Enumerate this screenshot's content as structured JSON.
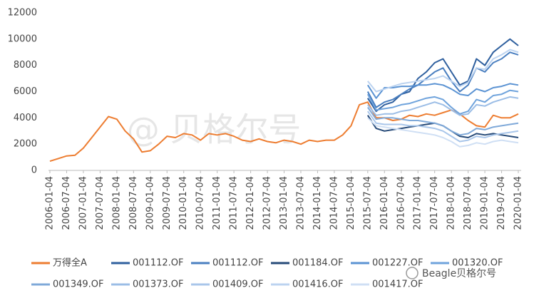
{
  "chart_data": {
    "type": "line",
    "watermark": "@ 贝格尔号",
    "logo_text": "Beagle贝格尔号",
    "x": [
      "2006-01-04",
      null,
      "2006-07-04",
      null,
      "2007-01-04",
      null,
      "2007-07-04",
      null,
      "2008-01-04",
      null,
      "2008-07-04",
      null,
      "2009-01-04",
      null,
      "2009-07-04",
      null,
      "2010-01-04",
      null,
      "2010-07-04",
      null,
      "2011-01-04",
      null,
      "2011-07-04",
      null,
      "2012-01-04",
      null,
      "2012-07-04",
      null,
      "2013-01-04",
      null,
      "2013-07-04",
      null,
      "2014-01-04",
      null,
      "2014-07-04",
      null,
      "2015-01-04",
      null,
      "2015-07-04",
      null,
      "2016-01-04",
      null,
      "2016-07-04",
      null,
      "2017-01-04",
      null,
      "2017-07-04",
      null,
      "2018-01-04",
      null,
      "2018-07-04",
      null,
      "2019-01-04",
      null,
      "2019-07-04",
      null,
      "2020-01-04"
    ],
    "ylim": [
      0,
      12000
    ],
    "yticks": [
      0,
      2000,
      4000,
      6000,
      8000,
      10000,
      12000
    ],
    "grid": false,
    "series": [
      {
        "name": "万得全A",
        "color": "#ed7d31",
        "values": [
          700,
          900,
          1100,
          1150,
          1700,
          2500,
          3300,
          4100,
          3900,
          3000,
          2400,
          1400,
          1500,
          2000,
          2600,
          2500,
          2800,
          2700,
          2300,
          2800,
          2700,
          2800,
          2600,
          2300,
          2200,
          2400,
          2200,
          2100,
          2300,
          2200,
          2000,
          2300,
          2200,
          2300,
          2300,
          2700,
          3400,
          5000,
          5200,
          4000,
          4000,
          3800,
          3900,
          4200,
          4100,
          4300,
          4200,
          4400,
          4600,
          4300,
          3800,
          3400,
          3300,
          4200,
          4000,
          4000,
          4300
        ]
      },
      {
        "name": "001112.OF",
        "color": "#2e5f9e",
        "values": [
          null,
          null,
          null,
          null,
          null,
          null,
          null,
          null,
          null,
          null,
          null,
          null,
          null,
          null,
          null,
          null,
          null,
          null,
          null,
          null,
          null,
          null,
          null,
          null,
          null,
          null,
          null,
          null,
          null,
          null,
          null,
          null,
          null,
          null,
          null,
          null,
          null,
          null,
          5500,
          4500,
          5000,
          5200,
          5800,
          6000,
          7000,
          7500,
          8200,
          8500,
          7500,
          6500,
          6800,
          8500,
          8000,
          9000,
          9500,
          10000,
          9500
        ]
      },
      {
        "name": "001112.OF",
        "color": "#4a7fc0",
        "values": [
          null,
          null,
          null,
          null,
          null,
          null,
          null,
          null,
          null,
          null,
          null,
          null,
          null,
          null,
          null,
          null,
          null,
          null,
          null,
          null,
          null,
          null,
          null,
          null,
          null,
          null,
          null,
          null,
          null,
          null,
          null,
          null,
          null,
          null,
          null,
          null,
          null,
          null,
          6000,
          4800,
          5200,
          5400,
          5800,
          6200,
          6500,
          7000,
          7500,
          7800,
          6800,
          6000,
          6500,
          7800,
          7500,
          8200,
          8500,
          9000,
          8800
        ]
      },
      {
        "name": "001184.OF",
        "color": "#264a78",
        "values": [
          null,
          null,
          null,
          null,
          null,
          null,
          null,
          null,
          null,
          null,
          null,
          null,
          null,
          null,
          null,
          null,
          null,
          null,
          null,
          null,
          null,
          null,
          null,
          null,
          null,
          null,
          null,
          null,
          null,
          null,
          null,
          null,
          null,
          null,
          null,
          null,
          null,
          null,
          4200,
          3200,
          3000,
          3100,
          3200,
          3300,
          3400,
          3500,
          3600,
          3400,
          3000,
          2600,
          2500,
          2800,
          2700,
          2800,
          2700,
          2600,
          2500
        ]
      },
      {
        "name": "001227.OF",
        "color": "#5b93d3",
        "values": [
          null,
          null,
          null,
          null,
          null,
          null,
          null,
          null,
          null,
          null,
          null,
          null,
          null,
          null,
          null,
          null,
          null,
          null,
          null,
          null,
          null,
          null,
          null,
          null,
          null,
          null,
          null,
          null,
          null,
          null,
          null,
          null,
          null,
          null,
          null,
          null,
          null,
          null,
          6500,
          5500,
          6300,
          6300,
          6400,
          6400,
          6500,
          6500,
          6600,
          6500,
          6200,
          5800,
          5700,
          6200,
          6000,
          6300,
          6400,
          6600,
          6500
        ]
      },
      {
        "name": "001320.OF",
        "color": "#6fa3dc",
        "values": [
          null,
          null,
          null,
          null,
          null,
          null,
          null,
          null,
          null,
          null,
          null,
          null,
          null,
          null,
          null,
          null,
          null,
          null,
          null,
          null,
          null,
          null,
          null,
          null,
          null,
          null,
          null,
          null,
          null,
          null,
          null,
          null,
          null,
          null,
          null,
          null,
          null,
          null,
          5800,
          4600,
          4700,
          4800,
          5000,
          5100,
          5300,
          5500,
          5600,
          5400,
          4800,
          4300,
          4500,
          5400,
          5200,
          5700,
          5800,
          6100,
          6000
        ]
      },
      {
        "name": "001349.OF",
        "color": "#7fa9d9",
        "values": [
          null,
          null,
          null,
          null,
          null,
          null,
          null,
          null,
          null,
          null,
          null,
          null,
          null,
          null,
          null,
          null,
          null,
          null,
          null,
          null,
          null,
          null,
          null,
          null,
          null,
          null,
          null,
          null,
          null,
          null,
          null,
          null,
          null,
          null,
          null,
          null,
          null,
          null,
          4800,
          3900,
          4000,
          4000,
          3900,
          3800,
          3800,
          3700,
          3600,
          3400,
          3000,
          2700,
          2800,
          3200,
          3100,
          3300,
          3400,
          3500,
          3600
        ]
      },
      {
        "name": "001373.OF",
        "color": "#9bbde6",
        "values": [
          null,
          null,
          null,
          null,
          null,
          null,
          null,
          null,
          null,
          null,
          null,
          null,
          null,
          null,
          null,
          null,
          null,
          null,
          null,
          null,
          null,
          null,
          null,
          null,
          null,
          null,
          null,
          null,
          null,
          null,
          null,
          null,
          null,
          null,
          null,
          null,
          null,
          null,
          5000,
          4200,
          4300,
          4300,
          4500,
          4600,
          4800,
          5000,
          5200,
          5000,
          4600,
          4200,
          4300,
          5000,
          4900,
          5200,
          5400,
          5600,
          5500
        ]
      },
      {
        "name": "001409.OF",
        "color": "#a9c6ea",
        "values": [
          null,
          null,
          null,
          null,
          null,
          null,
          null,
          null,
          null,
          null,
          null,
          null,
          null,
          null,
          null,
          null,
          null,
          null,
          null,
          null,
          null,
          null,
          null,
          null,
          null,
          null,
          null,
          null,
          null,
          null,
          null,
          null,
          null,
          null,
          null,
          null,
          null,
          null,
          4500,
          3600,
          3500,
          3500,
          3500,
          3400,
          3400,
          3300,
          3200,
          3000,
          2600,
          2200,
          2300,
          2600,
          2500,
          2700,
          2800,
          2900,
          3000
        ]
      },
      {
        "name": "001416.OF",
        "color": "#bcd3f0",
        "values": [
          null,
          null,
          null,
          null,
          null,
          null,
          null,
          null,
          null,
          null,
          null,
          null,
          null,
          null,
          null,
          null,
          null,
          null,
          null,
          null,
          null,
          null,
          null,
          null,
          null,
          null,
          null,
          null,
          null,
          null,
          null,
          null,
          null,
          null,
          null,
          null,
          null,
          null,
          6800,
          6000,
          6200,
          6400,
          6600,
          6700,
          6800,
          6900,
          7000,
          7200,
          6800,
          6400,
          6700,
          7800,
          7700,
          8500,
          8800,
          9200,
          9000
        ]
      },
      {
        "name": "001417.OF",
        "color": "#cfdff4",
        "values": [
          null,
          null,
          null,
          null,
          null,
          null,
          null,
          null,
          null,
          null,
          null,
          null,
          null,
          null,
          null,
          null,
          null,
          null,
          null,
          null,
          null,
          null,
          null,
          null,
          null,
          null,
          null,
          null,
          null,
          null,
          null,
          null,
          null,
          null,
          null,
          null,
          null,
          null,
          4000,
          3400,
          3300,
          3200,
          3100,
          3000,
          2900,
          2800,
          2700,
          2500,
          2200,
          1800,
          1900,
          2100,
          2000,
          2200,
          2300,
          2200,
          2100
        ]
      }
    ]
  }
}
